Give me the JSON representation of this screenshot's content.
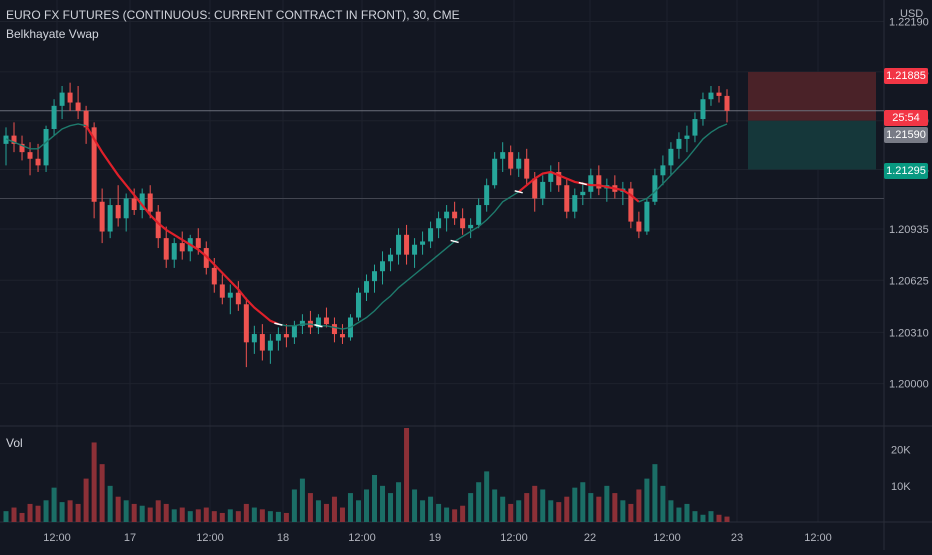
{
  "header": {
    "symbol_title": "EURO FX FUTURES (CONTINUOUS: CURRENT CONTRACT IN FRONT), 30, CME",
    "indicator_name": "Belkhayate Vwap",
    "volume_label": "Vol",
    "currency_unit": "USD"
  },
  "colors": {
    "background": "#131722",
    "grid": "#1e222d",
    "up_candle": "#26a69a",
    "down_candle": "#ef5350",
    "vwap_down": "#e0202a",
    "vwap_up": "#1e7a6c",
    "vwap_marker": "#ffffff",
    "volume_up": "#1b6e66",
    "volume_down": "#8c3037",
    "stop_zone": "#4a2228",
    "target_zone": "#15373a",
    "axis_text": "#b2b5be",
    "badge_red": "#f23645",
    "badge_grey": "#787b86",
    "badge_green": "#089981"
  },
  "badges": {
    "stop_price": "1.21885",
    "countdown": "25:54",
    "entry_price": "1.21590",
    "target_price": "1.21295"
  },
  "chart_data": [
    {
      "type": "candlestick",
      "title": "EURO FX FUTURES (CONTINUOUS: CURRENT CONTRACT IN FRONT), 30, CME",
      "timeframe_minutes": 30,
      "y_axis": {
        "unit": "USD",
        "ticks": [
          "1.22190",
          "1.21885",
          "1.21590",
          "1.21295",
          "1.20935",
          "1.20625",
          "1.20310",
          "1.20000"
        ],
        "range": [
          1.1975,
          1.2232
        ],
        "position": "right"
      },
      "x_axis": {
        "ticks": [
          "12:00",
          "17",
          "12:00",
          "18",
          "12:00",
          "19",
          "12:00",
          "22",
          "12:00",
          "23",
          "12:00"
        ]
      },
      "price_lines": {
        "last_price": 1.2165,
        "stop": 1.21885,
        "entry": 1.2159,
        "target": 1.21295,
        "horizontal_level": 1.2112
      },
      "position_box": {
        "side": "short",
        "stop": 1.21885,
        "entry": 1.2159,
        "target": 1.21295
      },
      "ohlc": [
        [
          1.2145,
          1.2155,
          1.2132,
          1.215
        ],
        [
          1.215,
          1.2158,
          1.214,
          1.2145
        ],
        [
          1.2145,
          1.215,
          1.2135,
          1.214
        ],
        [
          1.214,
          1.2146,
          1.2126,
          1.2136
        ],
        [
          1.2136,
          1.2145,
          1.2128,
          1.2132
        ],
        [
          1.2132,
          1.2156,
          1.2128,
          1.2154
        ],
        [
          1.2154,
          1.2172,
          1.215,
          1.2168
        ],
        [
          1.2168,
          1.218,
          1.216,
          1.2176
        ],
        [
          1.2176,
          1.2182,
          1.2165,
          1.217
        ],
        [
          1.217,
          1.218,
          1.216,
          1.2165
        ],
        [
          1.2165,
          1.2168,
          1.2145,
          1.2155
        ],
        [
          1.2155,
          1.2158,
          1.21,
          1.211
        ],
        [
          1.211,
          1.2118,
          1.2085,
          1.2092
        ],
        [
          1.2092,
          1.2112,
          1.2088,
          1.2108
        ],
        [
          1.2108,
          1.212,
          1.2095,
          1.21
        ],
        [
          1.21,
          1.2115,
          1.2092,
          1.2112
        ],
        [
          1.2112,
          1.2118,
          1.2102,
          1.2105
        ],
        [
          1.2105,
          1.2118,
          1.21,
          1.2115
        ],
        [
          1.2115,
          1.212,
          1.21,
          1.2104
        ],
        [
          1.2104,
          1.2108,
          1.2082,
          1.2088
        ],
        [
          1.2088,
          1.2095,
          1.207,
          1.2075
        ],
        [
          1.2075,
          1.2088,
          1.207,
          1.2085
        ],
        [
          1.2085,
          1.2092,
          1.2075,
          1.208
        ],
        [
          1.208,
          1.209,
          1.2074,
          1.2088
        ],
        [
          1.2088,
          1.2094,
          1.2078,
          1.2082
        ],
        [
          1.2082,
          1.2086,
          1.2066,
          1.207
        ],
        [
          1.207,
          1.2076,
          1.2055,
          1.206
        ],
        [
          1.206,
          1.2066,
          1.2048,
          1.2052
        ],
        [
          1.2052,
          1.206,
          1.2042,
          1.2055
        ],
        [
          1.2055,
          1.2062,
          1.2044,
          1.2048
        ],
        [
          1.2048,
          1.2052,
          1.201,
          1.2025
        ],
        [
          1.2025,
          1.2035,
          1.2018,
          1.203
        ],
        [
          1.203,
          1.2036,
          1.2014,
          1.202
        ],
        [
          1.202,
          1.203,
          1.2012,
          1.2026
        ],
        [
          1.2026,
          1.2034,
          1.202,
          1.203
        ],
        [
          1.203,
          1.2036,
          1.2022,
          1.2028
        ],
        [
          1.2028,
          1.2038,
          1.2024,
          1.2035
        ],
        [
          1.2035,
          1.2042,
          1.203,
          1.2038
        ],
        [
          1.2038,
          1.2044,
          1.203,
          1.2034
        ],
        [
          1.2034,
          1.2042,
          1.203,
          1.204
        ],
        [
          1.204,
          1.2046,
          1.2034,
          1.2036
        ],
        [
          1.2036,
          1.204,
          1.2025,
          1.203
        ],
        [
          1.203,
          1.2036,
          1.2024,
          1.2028
        ],
        [
          1.2028,
          1.2042,
          1.2026,
          1.204
        ],
        [
          1.204,
          1.2058,
          1.2038,
          1.2055
        ],
        [
          1.2055,
          1.2066,
          1.205,
          1.2062
        ],
        [
          1.2062,
          1.2072,
          1.2055,
          1.2068
        ],
        [
          1.2068,
          1.208,
          1.206,
          1.2074
        ],
        [
          1.2074,
          1.2082,
          1.2068,
          1.2078
        ],
        [
          1.2078,
          1.2094,
          1.2072,
          1.209
        ],
        [
          1.209,
          1.2096,
          1.2072,
          1.2078
        ],
        [
          1.2078,
          1.2088,
          1.207,
          1.2084
        ],
        [
          1.2084,
          1.2092,
          1.2078,
          1.2086
        ],
        [
          1.2086,
          1.2098,
          1.2082,
          1.2094
        ],
        [
          1.2094,
          1.2104,
          1.2088,
          1.21
        ],
        [
          1.21,
          1.2108,
          1.2092,
          1.2104
        ],
        [
          1.2104,
          1.211,
          1.2096,
          1.21
        ],
        [
          1.21,
          1.2106,
          1.209,
          1.2094
        ],
        [
          1.2094,
          1.21,
          1.2088,
          1.2096
        ],
        [
          1.2096,
          1.2112,
          1.2094,
          1.2108
        ],
        [
          1.2108,
          1.2124,
          1.2104,
          1.212
        ],
        [
          1.212,
          1.214,
          1.2118,
          1.2136
        ],
        [
          1.2136,
          1.2146,
          1.2128,
          1.214
        ],
        [
          1.214,
          1.2144,
          1.2126,
          1.213
        ],
        [
          1.213,
          1.214,
          1.2125,
          1.2136
        ],
        [
          1.2136,
          1.2142,
          1.212,
          1.2124
        ],
        [
          1.2124,
          1.2128,
          1.2104,
          1.2112
        ],
        [
          1.2112,
          1.2126,
          1.2108,
          1.2122
        ],
        [
          1.2122,
          1.2132,
          1.2116,
          1.2128
        ],
        [
          1.2128,
          1.2134,
          1.2116,
          1.212
        ],
        [
          1.212,
          1.2124,
          1.21,
          1.2104
        ],
        [
          1.2104,
          1.2118,
          1.21,
          1.2114
        ],
        [
          1.2114,
          1.2122,
          1.2108,
          1.2116
        ],
        [
          1.2116,
          1.213,
          1.2112,
          1.2126
        ],
        [
          1.2126,
          1.2132,
          1.2114,
          1.2118
        ],
        [
          1.2118,
          1.2124,
          1.211,
          1.212
        ],
        [
          1.212,
          1.2126,
          1.2112,
          1.2116
        ],
        [
          1.2116,
          1.2122,
          1.2108,
          1.2118
        ],
        [
          1.2118,
          1.2122,
          1.2094,
          1.2098
        ],
        [
          1.2098,
          1.2104,
          1.2088,
          1.2092
        ],
        [
          1.2092,
          1.2112,
          1.209,
          1.211
        ],
        [
          1.211,
          1.213,
          1.2108,
          1.2126
        ],
        [
          1.2126,
          1.2138,
          1.212,
          1.2132
        ],
        [
          1.2132,
          1.2146,
          1.2126,
          1.2142
        ],
        [
          1.2142,
          1.2152,
          1.2136,
          1.2148
        ],
        [
          1.2148,
          1.2156,
          1.214,
          1.215
        ],
        [
          1.215,
          1.2164,
          1.2146,
          1.216
        ],
        [
          1.216,
          1.2176,
          1.2156,
          1.2172
        ],
        [
          1.2172,
          1.218,
          1.2168,
          1.2176
        ],
        [
          1.2176,
          1.218,
          1.217,
          1.2174
        ],
        [
          1.2174,
          1.2178,
          1.2158,
          1.2165
        ]
      ],
      "vwap": [
        1.2148,
        1.2146,
        1.2144,
        1.2142,
        1.2142,
        1.2146,
        1.215,
        1.2154,
        1.2156,
        1.2157,
        1.2156,
        1.2148,
        1.214,
        1.2133,
        1.2126,
        1.212,
        1.2114,
        1.2108,
        1.2102,
        1.2097,
        1.2093,
        1.209,
        1.2087,
        1.2084,
        1.2081,
        1.2077,
        1.2072,
        1.2067,
        1.2062,
        1.2057,
        1.2051,
        1.2046,
        1.2042,
        1.2038,
        1.2036,
        1.2035,
        1.2035,
        1.2036,
        1.2036,
        1.2035,
        1.2035,
        1.2034,
        1.2033,
        1.2034,
        1.2037,
        1.204,
        1.2044,
        1.2049,
        1.2053,
        1.2058,
        1.2062,
        1.2066,
        1.207,
        1.2074,
        1.2078,
        1.2082,
        1.2086,
        1.2089,
        1.2092,
        1.2095,
        1.2099,
        1.2104,
        1.211,
        1.2113,
        1.2116,
        1.212,
        1.2124,
        1.2127,
        1.2128,
        1.2126,
        1.2124,
        1.2122,
        1.2121,
        1.212,
        1.212,
        1.2119,
        1.2118,
        1.2117,
        1.2114,
        1.211,
        1.2112,
        1.2116,
        1.2121,
        1.2126,
        1.2131,
        1.2136,
        1.2142,
        1.2148,
        1.2152,
        1.2155,
        1.2157
      ],
      "vwap_segments": [
        {
          "from": 0,
          "to": 10,
          "color": "up"
        },
        {
          "from": 10,
          "to": 34,
          "color": "down"
        },
        {
          "from": 34,
          "to": 42,
          "color": "up"
        },
        {
          "from": 42,
          "to": 64,
          "color": "up"
        },
        {
          "from": 64,
          "to": 79,
          "color": "down"
        },
        {
          "from": 79,
          "to": 90,
          "color": "up"
        }
      ],
      "vwap_markers": [
        34,
        39,
        56,
        64,
        72
      ]
    },
    {
      "type": "bar",
      "title": "Vol",
      "y_axis": {
        "ticks": [
          "20K",
          "10K"
        ],
        "range": [
          0,
          26000
        ],
        "position": "right"
      },
      "values": [
        3000,
        4000,
        2500,
        5000,
        4500,
        6000,
        9500,
        5500,
        6000,
        5000,
        12000,
        22000,
        16000,
        10000,
        7000,
        6000,
        5000,
        4500,
        4000,
        6000,
        5000,
        3500,
        4000,
        3000,
        3500,
        4000,
        3000,
        2500,
        3500,
        3000,
        5000,
        4000,
        3500,
        3000,
        2800,
        2500,
        9000,
        12000,
        8000,
        6000,
        5000,
        7000,
        4000,
        8000,
        6000,
        9000,
        13000,
        10000,
        8000,
        11000,
        26000,
        9000,
        6000,
        7000,
        5000,
        4000,
        3500,
        4500,
        8000,
        11000,
        14000,
        9000,
        7000,
        5000,
        6000,
        8000,
        10000,
        9000,
        6000,
        5500,
        7000,
        9500,
        11000,
        8000,
        7000,
        10000,
        8000,
        6000,
        5000,
        9000,
        12000,
        16000,
        10000,
        6000,
        4000,
        5000,
        3000,
        2000,
        3000,
        2000,
        1500
      ]
    }
  ]
}
